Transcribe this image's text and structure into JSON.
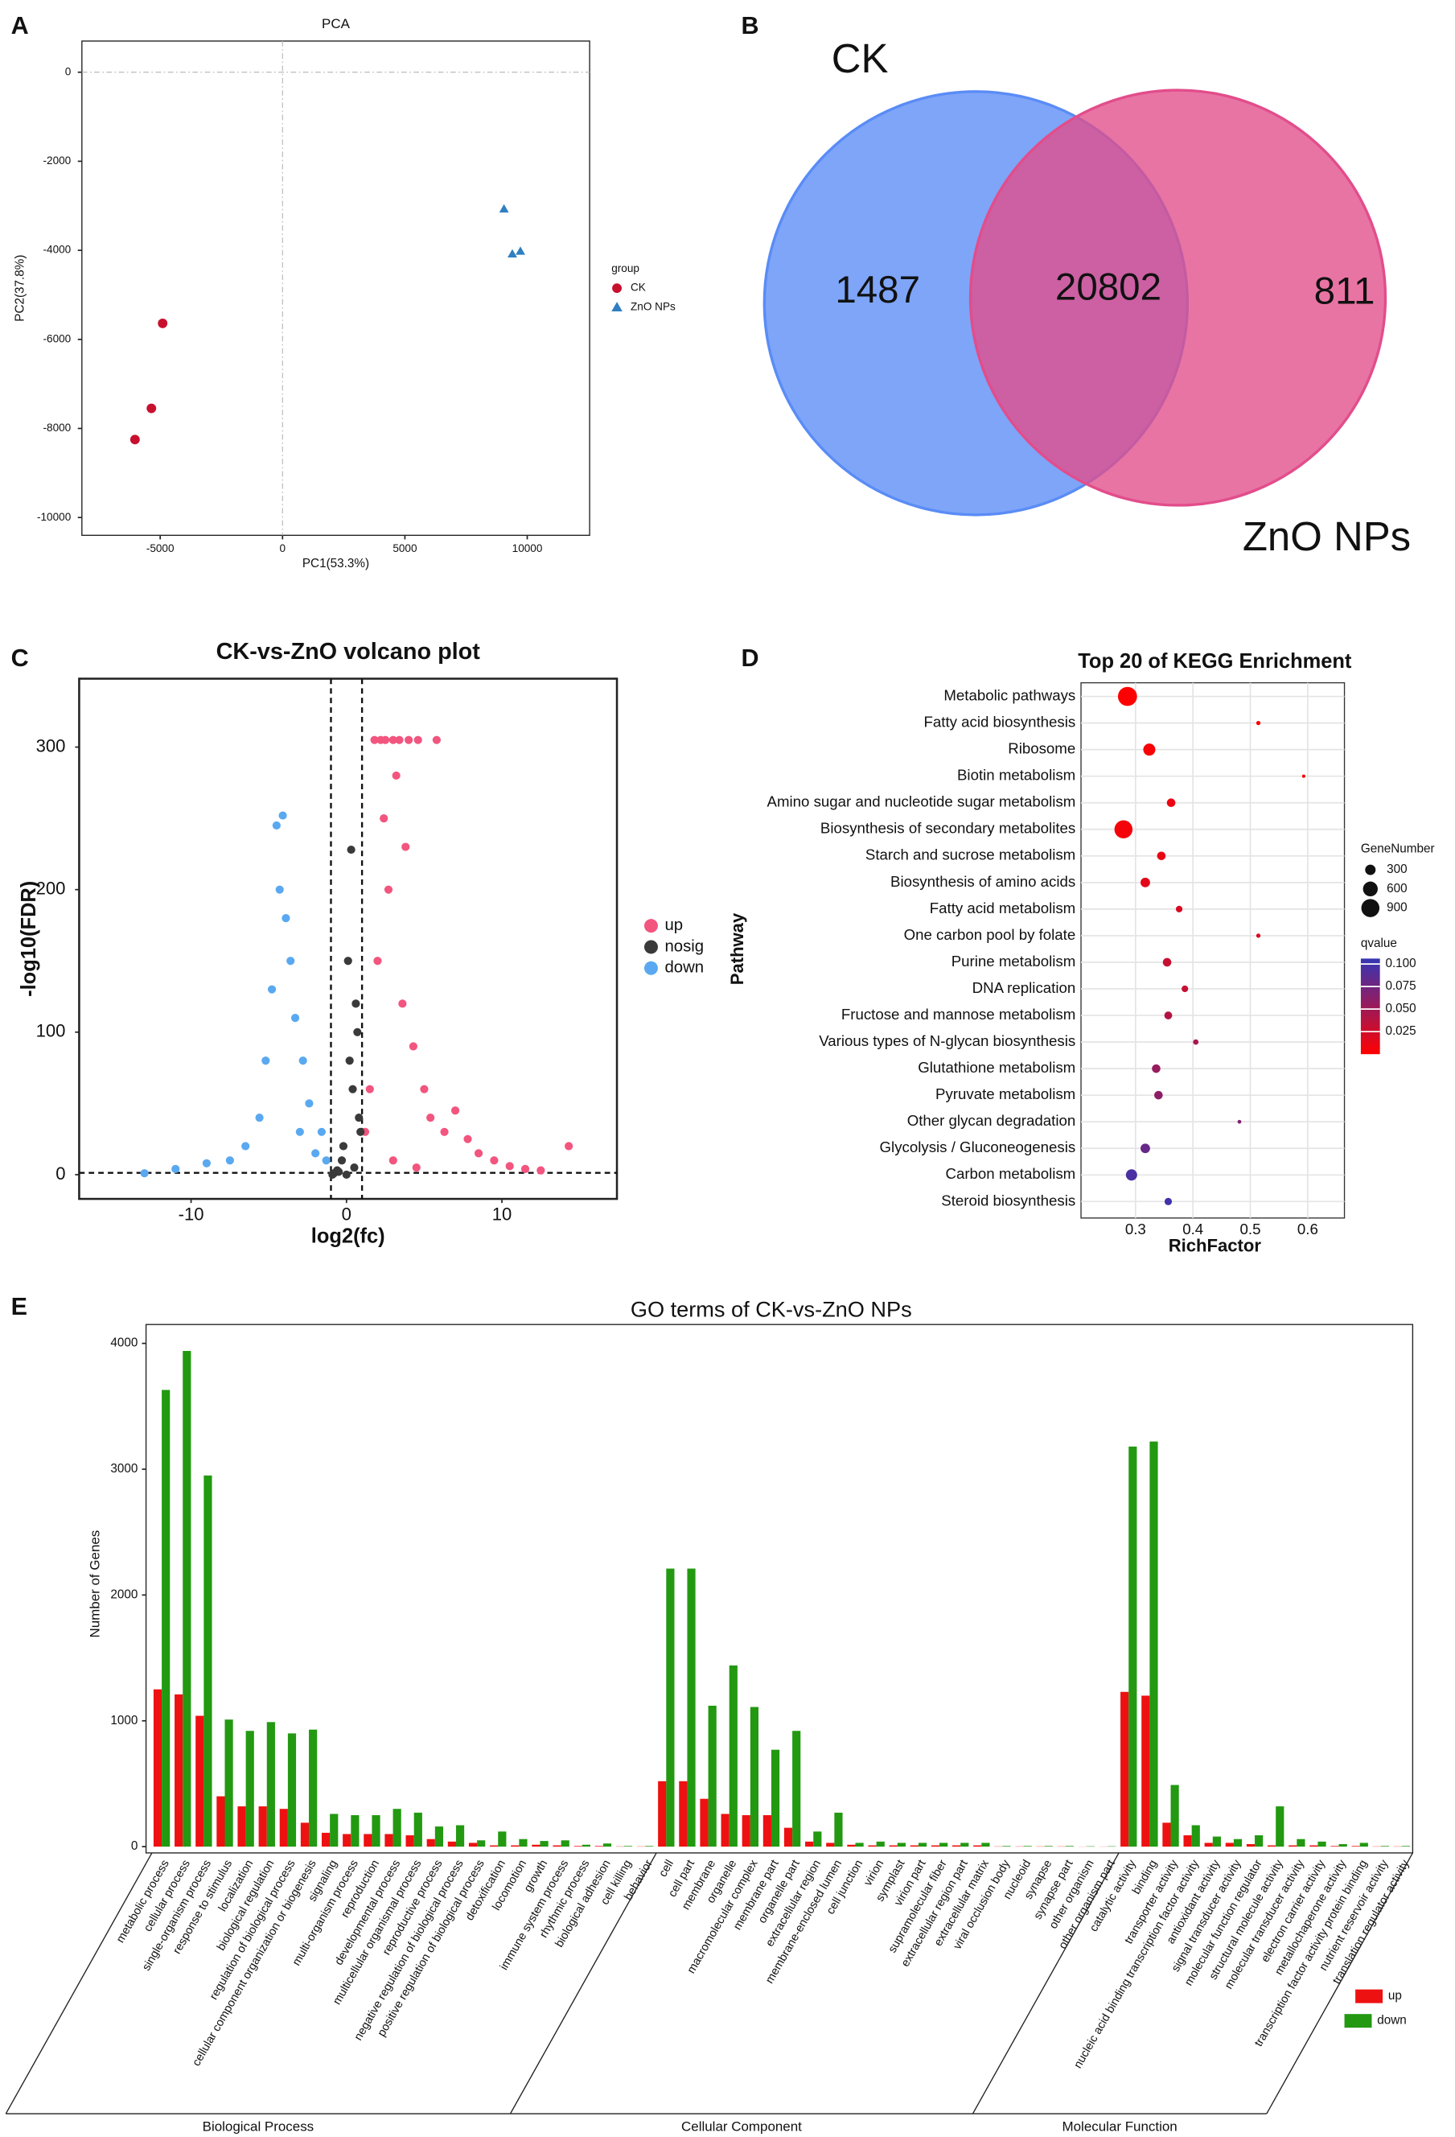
{
  "chart_data": [
    {
      "panel": "A",
      "type": "scatter",
      "title": "PCA",
      "x_label": "PC1(53.3%)",
      "y_label": "PC2(37.8%)",
      "xlim": [
        -8200,
        12550
      ],
      "ylim": [
        -10400,
        700
      ],
      "xticks": [
        -5000,
        0,
        5000,
        10000
      ],
      "yticks": [
        0,
        -2000,
        -4000,
        -6000,
        -8000,
        -10000
      ],
      "legend_title": "group",
      "series": [
        {
          "name": "CK",
          "color": "#c8102e",
          "marker": "circle",
          "x": [
            -4900,
            -5360,
            -6030
          ],
          "values": [
            -5640,
            -7550,
            -8250
          ]
        },
        {
          "name": "ZnO NPs",
          "color": "#2f7fc1",
          "marker": "triangle",
          "x": [
            9050,
            9390,
            9720
          ],
          "values": [
            -3070,
            -4080,
            -4020
          ]
        }
      ]
    },
    {
      "panel": "B",
      "type": "venn",
      "sets": [
        {
          "name": "CK",
          "color": "#5a8cf6"
        },
        {
          "name": "ZnO NPs",
          "color": "#e24d8b"
        }
      ],
      "values": [
        1487,
        20802,
        811
      ]
    },
    {
      "panel": "C",
      "type": "scatter",
      "title": "CK-vs-ZnO volcano plot",
      "x_label": "log2(fc)",
      "y_label": "-log10(FDR)",
      "xlim": [
        -17.2,
        17.4
      ],
      "ylim": [
        -17,
        348
      ],
      "xticks": [
        -10,
        0,
        10
      ],
      "yticks": [
        0,
        100,
        200,
        300
      ],
      "vlines": [
        -1,
        1
      ],
      "hline": 1.3,
      "series": [
        {
          "name": "up",
          "color": "#f2557e",
          "marker": "circle",
          "x": [
            1.2,
            1.5,
            1.8,
            2,
            2.2,
            2.4,
            2.5,
            2.7,
            3,
            3.2,
            3.4,
            3.6,
            3.8,
            4,
            4.3,
            4.6,
            5,
            5.4,
            5.8,
            6.3,
            7,
            7.8,
            8.5,
            9.5,
            10.5,
            11.5,
            12.5,
            14.3,
            3,
            4.5
          ],
          "values": [
            30,
            60,
            305,
            150,
            305,
            250,
            305,
            200,
            305,
            280,
            305,
            120,
            230,
            305,
            90,
            305,
            60,
            40,
            305,
            30,
            45,
            25,
            15,
            10,
            6,
            4,
            3,
            20,
            10,
            5
          ]
        },
        {
          "name": "nosig",
          "color": "#3a3a3a",
          "marker": "circle",
          "x": [
            0,
            0.5,
            -0.5,
            0.8,
            -0.3,
            0.2,
            -0.8,
            0.6,
            0.3,
            -0.6,
            0.4,
            -0.2,
            0.7,
            0.9,
            -0.9,
            0.1
          ],
          "values": [
            0,
            5,
            2,
            40,
            10,
            80,
            1,
            120,
            228,
            3,
            60,
            20,
            100,
            30,
            0,
            150
          ]
        },
        {
          "name": "down",
          "color": "#5aa9f0",
          "marker": "circle",
          "x": [
            -1.3,
            -1.6,
            -2,
            -2.4,
            -2.8,
            -3,
            -3.3,
            -3.6,
            -3.9,
            -4.1,
            -4.3,
            -4.5,
            -4.8,
            -5.2,
            -5.6,
            -6.5,
            -7.5,
            -9,
            -11,
            -13
          ],
          "values": [
            10,
            30,
            15,
            50,
            80,
            30,
            110,
            150,
            180,
            252,
            200,
            245,
            130,
            80,
            40,
            20,
            10,
            8,
            4,
            1
          ]
        }
      ]
    },
    {
      "panel": "D",
      "type": "bubble",
      "title": "Top 20 of KEGG Enrichment",
      "x_label": "RichFactor",
      "y_label": "Pathway",
      "xlim": [
        0.205,
        0.664
      ],
      "xticks": [
        0.3,
        0.4,
        0.5,
        0.6
      ],
      "categories": [
        "Metabolic pathways",
        "Fatty acid biosynthesis",
        "Ribosome",
        "Biotin metabolism",
        "Amino sugar and nucleotide sugar metabolism",
        "Biosynthesis of secondary metabolites",
        "Starch and sucrose metabolism",
        "Biosynthesis of amino acids",
        "Fatty acid metabolism",
        "One carbon pool by folate",
        "Purine metabolism",
        "DNA replication",
        "Fructose and mannose metabolism",
        "Various types of N-glycan biosynthesis",
        "Glutathione metabolism",
        "Pyruvate metabolism",
        "Other glycan degradation",
        "Glycolysis / Gluconeogenesis",
        "Carbon metabolism",
        "Steroid biosynthesis"
      ],
      "values": [
        0.286,
        0.514,
        0.324,
        0.593,
        0.362,
        0.279,
        0.345,
        0.317,
        0.376,
        0.514,
        0.355,
        0.386,
        0.357,
        0.405,
        0.336,
        0.34,
        0.481,
        0.317,
        0.293,
        0.357
      ],
      "sizes": [
        1000,
        50,
        400,
        30,
        200,
        900,
        200,
        250,
        120,
        50,
        200,
        120,
        170,
        80,
        200,
        200,
        40,
        250,
        350,
        150
      ],
      "qvalues": [
        0.001,
        0.002,
        0.004,
        0.005,
        0.01,
        0.006,
        0.012,
        0.015,
        0.02,
        0.02,
        0.03,
        0.03,
        0.04,
        0.045,
        0.055,
        0.06,
        0.065,
        0.08,
        0.095,
        0.1
      ],
      "size_title": "GeneNumber",
      "size_ticks": [
        300,
        600,
        900
      ],
      "color_title": "qvalue",
      "clim": [
        0.0,
        0.106
      ],
      "colors": [
        "#ff0000",
        "#3535b5"
      ],
      "color_ticks": [
        {
          "value": 0.1,
          "label": "0.100"
        },
        {
          "value": 0.075,
          "label": "0.075"
        },
        {
          "value": 0.05,
          "label": "0.050"
        },
        {
          "value": 0.025,
          "label": "0.025"
        }
      ]
    },
    {
      "panel": "E",
      "type": "bar",
      "title": "GO terms of CK-vs-ZnO NPs",
      "y_label": "Number of Genes",
      "ylim": [
        -50,
        4150
      ],
      "yticks": [
        0,
        1000,
        2000,
        3000,
        4000
      ],
      "groups": [
        {
          "name": "Biological Process",
          "categories": [
            "metabolic process",
            "cellular process",
            "single-organism process",
            "response to stimulus",
            "localization",
            "biological regulation",
            "regulation of biological process",
            "cellular component organization or biogenesis",
            "signaling",
            "multi-organism process",
            "reproduction",
            "developmental process",
            "multicellular organismal process",
            "reproductive process",
            "negative regulation of biological process",
            "positive regulation of biological process",
            "detoxification",
            "locomotion",
            "growth",
            "immune system process",
            "rhythmic process",
            "biological adhesion",
            "cell killing",
            "behavior"
          ]
        },
        {
          "name": "Cellular Component",
          "categories": [
            "cell",
            "cell part",
            "membrane",
            "organelle",
            "macromolecular complex",
            "membrane part",
            "organelle part",
            "extracellular region",
            "membrane-enclosed lumen",
            "cell junction",
            "virion",
            "symplast",
            "virion part",
            "supramolecular fiber",
            "extracellular region part",
            "extracellular matrix",
            "viral occlusion body",
            "nucleoid",
            "synapse",
            "synapse part",
            "other organism",
            "other organism part"
          ]
        },
        {
          "name": "Molecular Function",
          "categories": [
            "catalytic activity",
            "binding",
            "transporter activity",
            "nucleic acid binding transcription factor activity",
            "antioxidant activity",
            "signal transducer activity",
            "molecular function regulator",
            "structural molecule activity",
            "molecular transducer activity",
            "electron carrier activity",
            "metallochaperone activity",
            "transcription factor activity protein binding",
            "nutrient reservoir activity",
            "translation regulator activity"
          ]
        }
      ],
      "series": [
        {
          "name": "up",
          "color": "#ee1111",
          "values": [
            1250,
            1210,
            1040,
            400,
            320,
            320,
            300,
            190,
            110,
            100,
            100,
            100,
            90,
            60,
            40,
            30,
            10,
            10,
            15,
            10,
            5,
            5,
            2,
            2,
            520,
            520,
            380,
            260,
            250,
            250,
            150,
            40,
            30,
            15,
            10,
            10,
            10,
            10,
            10,
            10,
            2,
            2,
            2,
            2,
            1,
            1,
            1230,
            1200,
            190,
            90,
            30,
            30,
            20,
            10,
            10,
            10,
            5,
            5,
            2,
            2
          ]
        },
        {
          "name": "down",
          "color": "#229911",
          "values": [
            3630,
            3940,
            2950,
            1010,
            920,
            990,
            900,
            930,
            260,
            250,
            250,
            300,
            270,
            160,
            170,
            50,
            120,
            60,
            45,
            50,
            15,
            25,
            5,
            5,
            2210,
            2210,
            1120,
            1440,
            1110,
            770,
            920,
            120,
            270,
            30,
            40,
            30,
            30,
            30,
            30,
            30,
            5,
            5,
            5,
            5,
            3,
            3,
            3180,
            3220,
            490,
            170,
            80,
            60,
            90,
            320,
            60,
            40,
            20,
            30,
            5,
            5
          ]
        }
      ]
    }
  ]
}
